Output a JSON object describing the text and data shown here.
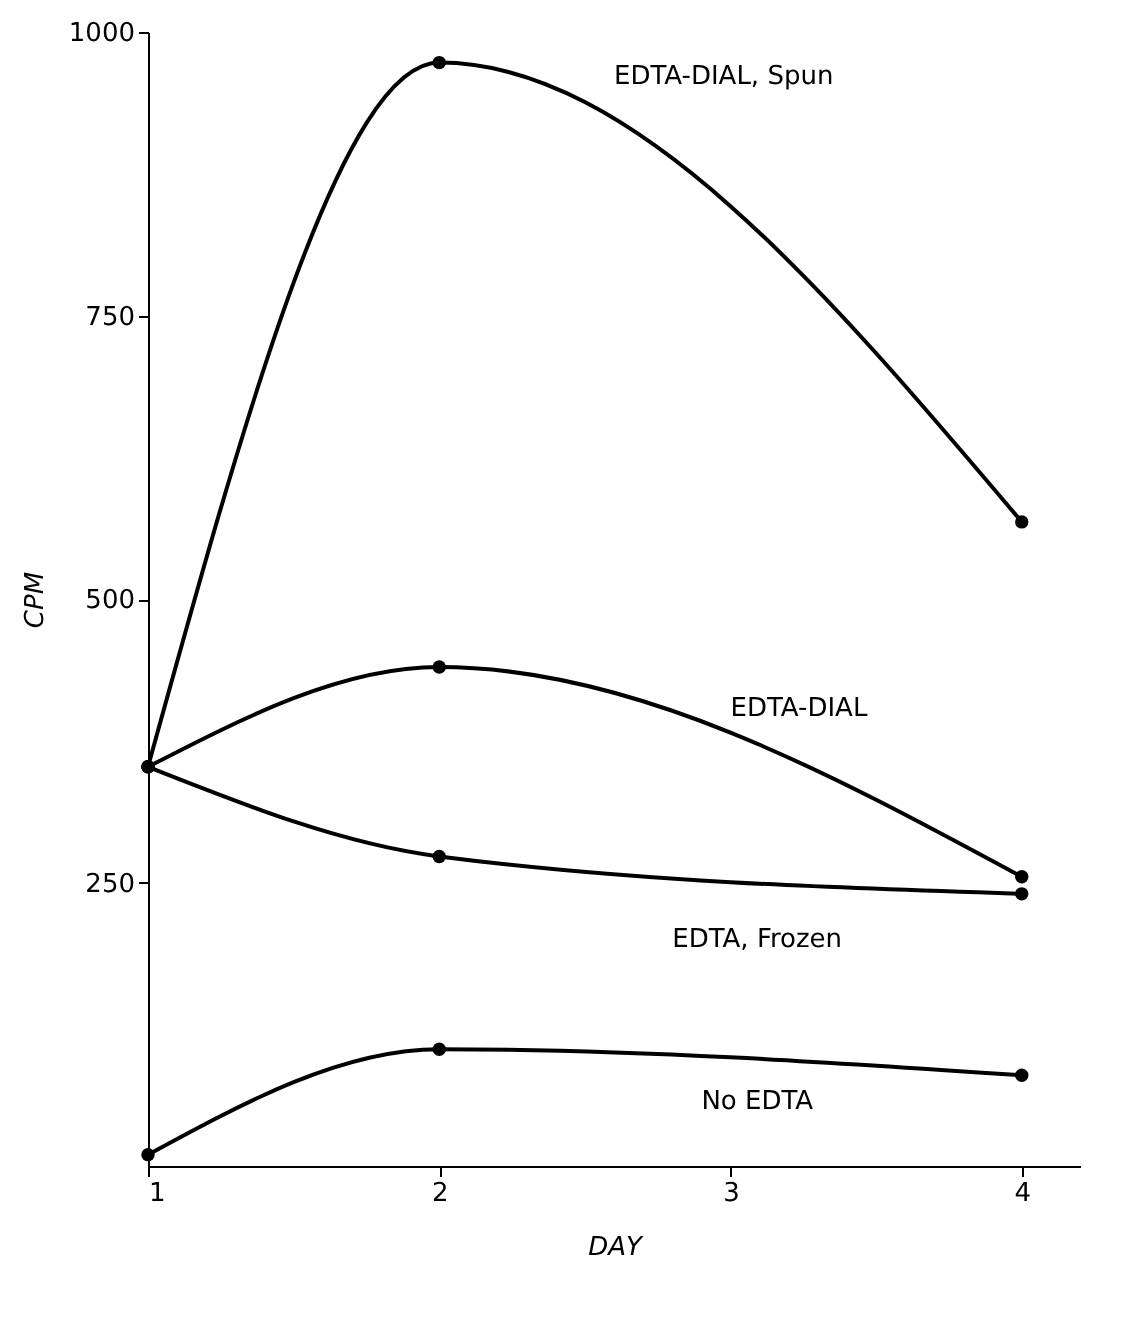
{
  "chart_data": {
    "type": "line",
    "xlabel": "DAY",
    "ylabel": "CPM",
    "x": [
      1,
      2,
      4
    ],
    "series": [
      {
        "name": "EDTA-DIAL, Spun",
        "color": "#000000",
        "values": [
          352,
          973,
          568
        ]
      },
      {
        "name": "EDTA-DIAL",
        "color": "#000000",
        "values": [
          352,
          440,
          255
        ]
      },
      {
        "name": "EDTA, Frozen",
        "color": "#000000",
        "values": [
          352,
          273,
          240
        ]
      },
      {
        "name": "No EDTA",
        "color": "#000000",
        "values": [
          10,
          103,
          80
        ]
      }
    ],
    "xlim": [
      1,
      4.2
    ],
    "ylim": [
      0,
      1000
    ],
    "xticks": [
      1,
      2,
      3,
      4
    ],
    "yticks": [
      250,
      500,
      750,
      1000
    ],
    "marker": "circle",
    "line_style": "solid",
    "grid": false
  }
}
